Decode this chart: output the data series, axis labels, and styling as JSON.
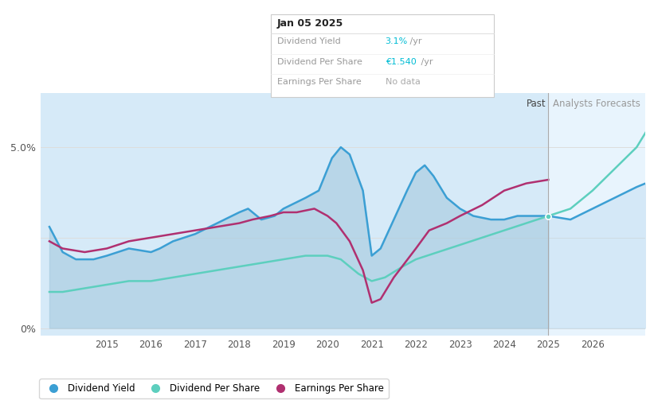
{
  "title_box": "Jan 05 2025",
  "tooltip_rows": [
    {
      "label": "Dividend Yield",
      "value": "3.1%",
      "suffix": " /yr",
      "color": "#00bcd4"
    },
    {
      "label": "Dividend Per Share",
      "value": "€1.540",
      "suffix": " /yr",
      "color": "#00bcd4"
    },
    {
      "label": "Earnings Per Share",
      "value": "No data",
      "color": "#aaaaaa"
    }
  ],
  "x_ticks": [
    2015,
    2016,
    2017,
    2018,
    2019,
    2020,
    2021,
    2022,
    2023,
    2024,
    2025,
    2026
  ],
  "x_min": 2013.5,
  "x_max": 2027.2,
  "y_min": -0.002,
  "y_max": 0.065,
  "y_ticks": [
    0.0,
    0.025,
    0.05
  ],
  "y_tick_labels": [
    "0%",
    "",
    "5.0%"
  ],
  "past_boundary": 2025.0,
  "bg_color": "#ffffff",
  "plot_bg_color": "#ffffff",
  "past_fill_color": "#d6eaf8",
  "forecast_fill_color": "#e8f4fd",
  "dividend_yield_color": "#3b9fd4",
  "dividend_per_share_color": "#5dcfbe",
  "earnings_per_share_color": "#b03070",
  "years_dy": [
    2013.7,
    2014.0,
    2014.3,
    2014.7,
    2015.0,
    2015.5,
    2016.0,
    2016.2,
    2016.5,
    2017.0,
    2017.5,
    2018.0,
    2018.2,
    2018.5,
    2018.8,
    2019.0,
    2019.5,
    2019.8,
    2020.0,
    2020.1,
    2020.3,
    2020.5,
    2020.8,
    2021.0,
    2021.2,
    2021.5,
    2021.8,
    2022.0,
    2022.2,
    2022.4,
    2022.7,
    2023.0,
    2023.3,
    2023.7,
    2024.0,
    2024.3,
    2024.7,
    2025.0,
    2025.5,
    2026.0,
    2026.5,
    2027.0,
    2027.2
  ],
  "dividend_yield": [
    0.028,
    0.021,
    0.019,
    0.019,
    0.02,
    0.022,
    0.021,
    0.022,
    0.024,
    0.026,
    0.029,
    0.032,
    0.033,
    0.03,
    0.031,
    0.033,
    0.036,
    0.038,
    0.044,
    0.047,
    0.05,
    0.048,
    0.038,
    0.02,
    0.022,
    0.03,
    0.038,
    0.043,
    0.045,
    0.042,
    0.036,
    0.033,
    0.031,
    0.03,
    0.03,
    0.031,
    0.031,
    0.031,
    0.03,
    0.033,
    0.036,
    0.039,
    0.04
  ],
  "years_dps": [
    2013.7,
    2014.0,
    2014.5,
    2015.0,
    2015.5,
    2016.0,
    2016.5,
    2017.0,
    2017.5,
    2018.0,
    2018.5,
    2019.0,
    2019.5,
    2020.0,
    2020.3,
    2020.7,
    2021.0,
    2021.3,
    2021.7,
    2022.0,
    2022.5,
    2023.0,
    2023.5,
    2024.0,
    2024.5,
    2025.0,
    2025.5,
    2026.0,
    2026.5,
    2027.0,
    2027.2
  ],
  "dividend_per_share": [
    0.01,
    0.01,
    0.011,
    0.012,
    0.013,
    0.013,
    0.014,
    0.015,
    0.016,
    0.017,
    0.018,
    0.019,
    0.02,
    0.02,
    0.019,
    0.015,
    0.013,
    0.014,
    0.017,
    0.019,
    0.021,
    0.023,
    0.025,
    0.027,
    0.029,
    0.031,
    0.033,
    0.038,
    0.044,
    0.05,
    0.054
  ],
  "years_eps": [
    2013.7,
    2014.0,
    2014.5,
    2015.0,
    2015.5,
    2016.0,
    2016.5,
    2017.0,
    2017.5,
    2018.0,
    2018.3,
    2018.7,
    2019.0,
    2019.3,
    2019.7,
    2020.0,
    2020.2,
    2020.5,
    2020.8,
    2021.0,
    2021.2,
    2021.5,
    2022.0,
    2022.3,
    2022.7,
    2023.0,
    2023.5,
    2024.0,
    2024.5,
    2025.0
  ],
  "earnings_per_share": [
    0.024,
    0.022,
    0.021,
    0.022,
    0.024,
    0.025,
    0.026,
    0.027,
    0.028,
    0.029,
    0.03,
    0.031,
    0.032,
    0.032,
    0.033,
    0.031,
    0.029,
    0.024,
    0.016,
    0.007,
    0.008,
    0.014,
    0.022,
    0.027,
    0.029,
    0.031,
    0.034,
    0.038,
    0.04,
    0.041
  ],
  "legend_items": [
    {
      "label": "Dividend Yield",
      "color": "#3b9fd4"
    },
    {
      "label": "Dividend Per Share",
      "color": "#5dcfbe"
    },
    {
      "label": "Earnings Per Share",
      "color": "#b03070"
    }
  ]
}
